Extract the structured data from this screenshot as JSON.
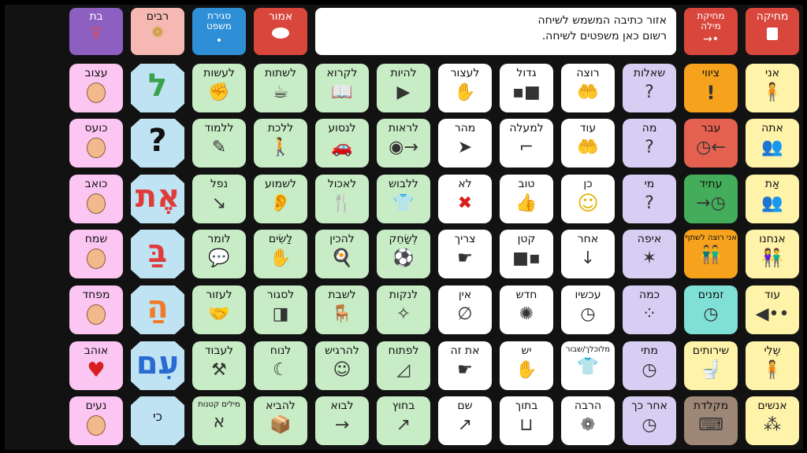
{
  "toolbar": {
    "delete": "מחיקה",
    "delete_word": "מחיקת מילה",
    "speak": "אמור",
    "close_sentence": "סגירת משפט",
    "plural": "רבים",
    "feminine": "בת"
  },
  "message": {
    "line1": "אזור כתיבה המשמש לשיחה",
    "line2": "רשום כאן משפטים לשיחה."
  },
  "colors": {
    "delete": "#d9463c",
    "speak": "#d9463c",
    "close_sentence": "#2e8fd6",
    "plural": "#f6b8b2",
    "feminine": "#8c5fc1",
    "white": "#ffffff",
    "green": "#c8ecc6",
    "purple": "#d8cdf2",
    "pink": "#fbc6f2",
    "orange": "#f6a21c",
    "red_tense": "#e5614f",
    "green_tense": "#44ad5b",
    "teal": "#7fe0d6",
    "yellow": "#fff2a9",
    "keyboard": "#9e8777",
    "light_blue": "#bfe3f3"
  },
  "columns": {
    "c1": [
      "אני",
      "אתה",
      "אַת",
      "אנחנו",
      "עוד",
      "שֶלִי",
      "אנשים"
    ],
    "c2": [
      "ציווי",
      "עבר",
      "עתיד",
      "אני רוצה לשתף",
      "זמנים",
      "שירותים",
      "מקלדת"
    ],
    "c3": [
      "שאלות",
      "מה",
      "מי",
      "איפה",
      "כמה",
      "מתי",
      "אחר כך"
    ],
    "c4": [
      "רוצה",
      "עוד",
      "כן",
      "אחר",
      "עכשיו",
      "מלוכלך/שבור",
      "הרבה"
    ],
    "c5": [
      "גדול",
      "למעלה",
      "טוב",
      "קטן",
      "חדש",
      "יש",
      "בתוך"
    ],
    "c6": [
      "לעצור",
      "מהר",
      "לא",
      "צריך",
      "אין",
      "את זה",
      "שם"
    ],
    "c7": [
      "להיות",
      "לראות",
      "ללבוש",
      "לְשַׂחֵק",
      "לנקות",
      "לפתוח",
      "בחוץ"
    ],
    "c8": [
      "לקרוא",
      "לנסוע",
      "לאכול",
      "להכין",
      "לשבת",
      "להרגיש",
      "לבוא"
    ],
    "c9": [
      "לשתות",
      "ללכת",
      "לשמוע",
      "לַשִׂים",
      "לסגור",
      "לנוח",
      "להביא"
    ],
    "c10": [
      "לעשות",
      "ללמוד",
      "נפל",
      "לומר",
      "לעזור",
      "לעבוד",
      "מילים קטנות"
    ],
    "c11": [
      "ל",
      "?",
      "אֶת",
      "בַּ",
      "הַ",
      "עִם",
      "כי"
    ],
    "c12": [
      "עצוב",
      "כועס",
      "כואב",
      "שמח",
      "מפחד",
      "אוהב",
      "נעים"
    ]
  },
  "icons": {
    "c1": [
      "person",
      "person-pair",
      "person-pair",
      "person-group",
      "dots-arrow",
      "person-self",
      "people"
    ],
    "c2": [
      "exclamation",
      "clock-back",
      "clock-forward",
      "share",
      "clock",
      "toilet",
      "keyboard"
    ],
    "c3": [
      "question",
      "question-box",
      "question-face",
      "question-arrows",
      "question-dots",
      "question-clock",
      "clock-later"
    ],
    "c4": [
      "want-hands",
      "more-hands",
      "smile",
      "other-arrow",
      "now-clock",
      "broken-shirt",
      "many"
    ],
    "c5": [
      "big",
      "up-stairs",
      "thumb-up",
      "small",
      "new",
      "have",
      "inside"
    ],
    "c6": [
      "stop-hand",
      "fast",
      "no-x",
      "need",
      "none",
      "this",
      "there"
    ],
    "c7": [
      "be-arrow",
      "see-eye",
      "dress",
      "play",
      "clean",
      "open",
      "outside"
    ],
    "c8": [
      "read",
      "drive-car",
      "eat",
      "prepare",
      "sit",
      "feel",
      "come"
    ],
    "c9": [
      "drink",
      "walk",
      "hear",
      "put",
      "close",
      "rest",
      "bring"
    ],
    "c10": [
      "do",
      "learn",
      "fall",
      "say",
      "help",
      "work",
      "small-words"
    ],
    "c12": [
      "sad-face",
      "angry-face",
      "hurt-face",
      "happy-face",
      "scared-face",
      "heart",
      "pleasant-face"
    ]
  }
}
